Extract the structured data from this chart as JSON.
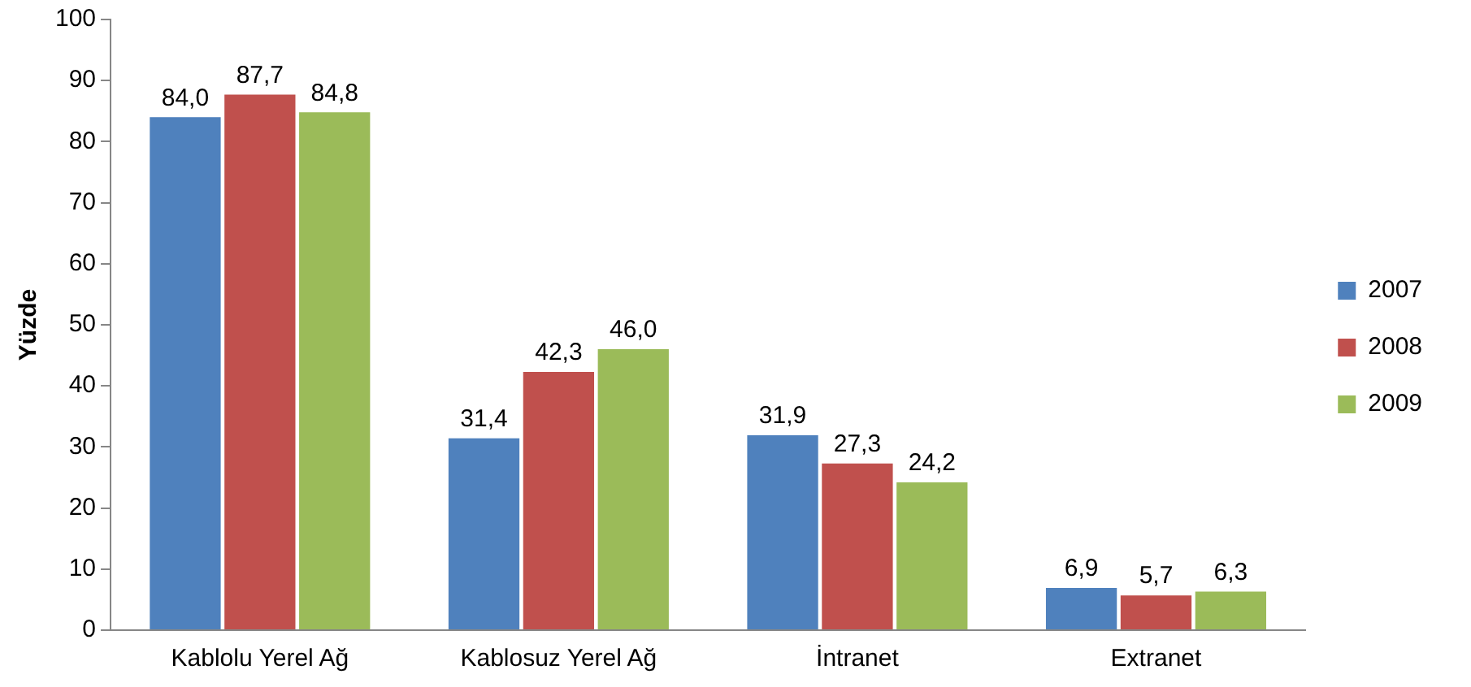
{
  "chart_data": {
    "type": "bar",
    "ylabel": "Yüzde",
    "categories": [
      "Kablolu Yerel Ağ",
      "Kablosuz Yerel Ağ",
      "İntranet",
      "Extranet"
    ],
    "series": [
      {
        "name": "2007",
        "color": "#4f81bd",
        "values": [
          84.0,
          31.4,
          31.9,
          6.9
        ],
        "value_labels": [
          "84,0",
          "31,4",
          "31,9",
          "6,9"
        ]
      },
      {
        "name": "2008",
        "color": "#c0504d",
        "values": [
          87.7,
          42.3,
          27.3,
          5.7
        ],
        "value_labels": [
          "87,7",
          "42,3",
          "27,3",
          "5,7"
        ]
      },
      {
        "name": "2009",
        "color": "#9bbb59",
        "values": [
          84.8,
          46.0,
          24.2,
          6.3
        ],
        "value_labels": [
          "84,8",
          "46,0",
          "24,2",
          "6,3"
        ]
      }
    ],
    "ylim": [
      0,
      100
    ],
    "yticks": [
      0,
      10,
      20,
      30,
      40,
      50,
      60,
      70,
      80,
      90,
      100
    ],
    "grid": false,
    "legend": "right"
  }
}
